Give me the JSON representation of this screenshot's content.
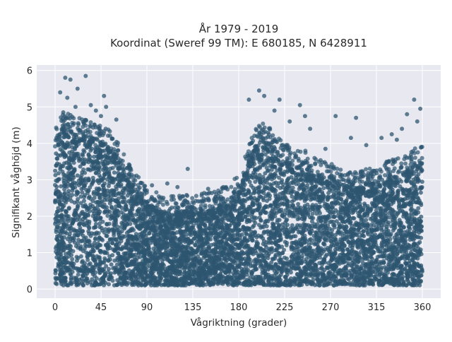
{
  "chart_data": {
    "type": "scatter",
    "title_line1": "År 1979 - 2019",
    "title_line2": "Koordinat (Sweref 99 TM): E 680185, N 6428911",
    "xlabel": "Vågriktning (grader)",
    "ylabel": "Signifikant våghöjd (m)",
    "xlim": [
      -18,
      378
    ],
    "ylim": [
      -0.25,
      6.15
    ],
    "xticks": [
      0,
      45,
      90,
      135,
      180,
      225,
      270,
      315,
      360
    ],
    "yticks": [
      0,
      1,
      2,
      3,
      4,
      5,
      6
    ],
    "grid": true,
    "colors": {
      "marker": "#2e5670",
      "plot_bg": "#e8e9f0",
      "grid": "#ffffff"
    },
    "envelope_upper": [
      [
        0,
        4.2
      ],
      [
        10,
        4.4
      ],
      [
        20,
        4.3
      ],
      [
        30,
        4.2
      ],
      [
        40,
        4.1
      ],
      [
        50,
        4.0
      ],
      [
        60,
        3.7
      ],
      [
        65,
        3.4
      ],
      [
        70,
        3.1
      ],
      [
        80,
        2.7
      ],
      [
        90,
        2.4
      ],
      [
        100,
        2.2
      ],
      [
        110,
        2.1
      ],
      [
        120,
        2.1
      ],
      [
        130,
        2.2
      ],
      [
        140,
        2.2
      ],
      [
        150,
        2.2
      ],
      [
        160,
        2.3
      ],
      [
        170,
        2.4
      ],
      [
        180,
        2.7
      ],
      [
        190,
        3.5
      ],
      [
        200,
        4.2
      ],
      [
        210,
        4.1
      ],
      [
        220,
        3.7
      ],
      [
        230,
        3.5
      ],
      [
        240,
        3.4
      ],
      [
        250,
        3.3
      ],
      [
        260,
        3.1
      ],
      [
        270,
        3.0
      ],
      [
        280,
        2.9
      ],
      [
        290,
        2.8
      ],
      [
        300,
        2.8
      ],
      [
        310,
        2.9
      ],
      [
        320,
        3.0
      ],
      [
        330,
        3.1
      ],
      [
        340,
        3.2
      ],
      [
        350,
        3.4
      ],
      [
        360,
        3.5
      ]
    ],
    "envelope_lower": 0.1,
    "outliers": [
      [
        10,
        5.8
      ],
      [
        15,
        5.75
      ],
      [
        30,
        5.85
      ],
      [
        22,
        5.5
      ],
      [
        5,
        5.4
      ],
      [
        48,
        5.3
      ],
      [
        12,
        5.25
      ],
      [
        35,
        5.05
      ],
      [
        50,
        5.0
      ],
      [
        20,
        5.0
      ],
      [
        60,
        4.65
      ],
      [
        40,
        4.9
      ],
      [
        45,
        4.75
      ],
      [
        8,
        4.85
      ],
      [
        130,
        3.3
      ],
      [
        110,
        2.9
      ],
      [
        120,
        2.8
      ],
      [
        95,
        2.85
      ],
      [
        150,
        2.75
      ],
      [
        165,
        2.8
      ],
      [
        200,
        5.45
      ],
      [
        205,
        5.3
      ],
      [
        220,
        5.2
      ],
      [
        240,
        5.05
      ],
      [
        190,
        5.2
      ],
      [
        215,
        4.9
      ],
      [
        245,
        4.75
      ],
      [
        275,
        4.75
      ],
      [
        295,
        4.7
      ],
      [
        345,
        4.8
      ],
      [
        352,
        5.2
      ],
      [
        358,
        4.95
      ],
      [
        230,
        4.6
      ],
      [
        250,
        4.4
      ],
      [
        290,
        4.15
      ],
      [
        320,
        4.15
      ],
      [
        335,
        4.1
      ],
      [
        330,
        4.25
      ],
      [
        265,
        3.85
      ],
      [
        305,
        3.95
      ],
      [
        340,
        4.4
      ],
      [
        355,
        4.6
      ]
    ]
  }
}
